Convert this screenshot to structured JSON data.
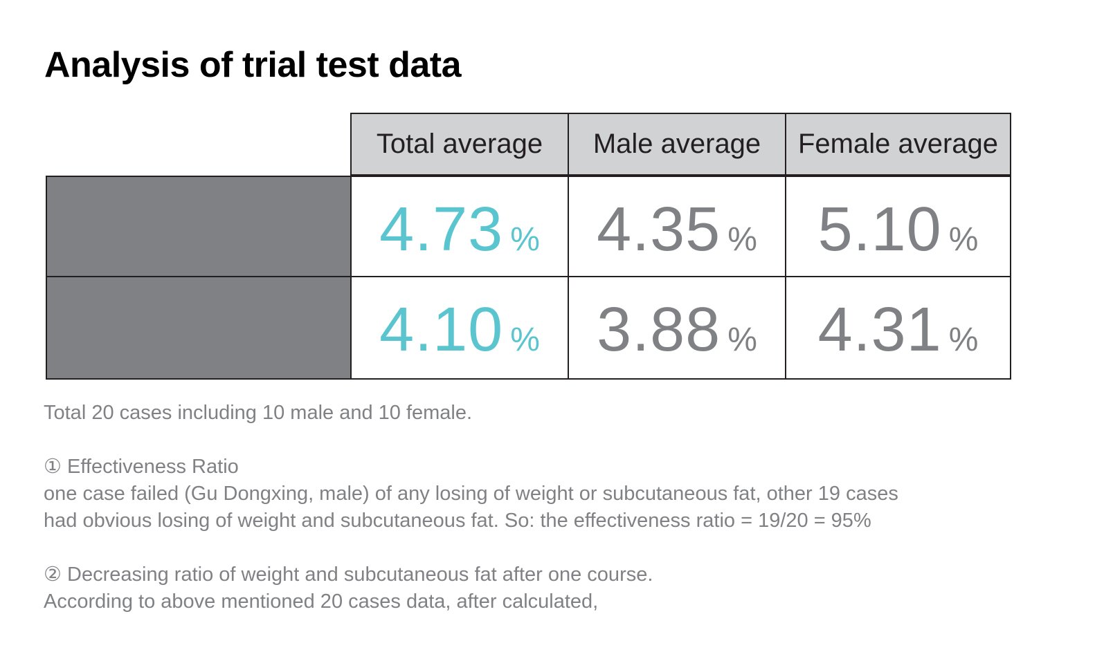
{
  "title": "Analysis of trial test data",
  "table": {
    "headers": [
      "Total average",
      "Male average",
      "Female average"
    ],
    "rows": [
      {
        "label": "",
        "values": [
          {
            "number": "4.73",
            "unit": "%"
          },
          {
            "number": "4.35",
            "unit": "%"
          },
          {
            "number": "5.10",
            "unit": "%"
          }
        ]
      },
      {
        "label": "",
        "values": [
          {
            "number": "4.10",
            "unit": "%"
          },
          {
            "number": "3.88",
            "unit": "%"
          },
          {
            "number": "4.31",
            "unit": "%"
          }
        ]
      }
    ]
  },
  "notes": {
    "summary": "Total 20 cases including 10 male and 10 female.",
    "item1_heading": "① Effectiveness Ratio",
    "item1_line1": "one case failed (Gu Dongxing, male) of any losing of weight or subcutaneous fat, other 19 cases",
    "item1_line2": "had obvious losing of weight and subcutaneous fat. So: the effectiveness ratio = 19/20 = 95%",
    "item2_heading": "② Decreasing ratio of weight and subcutaneous fat after one course.",
    "item2_line1": "According to above mentioned 20 cases data, after calculated,"
  },
  "colors": {
    "accent": "#5bc5cf",
    "neutral": "#808184",
    "header_bg": "#d1d2d4",
    "label_bg": "#808184",
    "border": "#231f20"
  }
}
